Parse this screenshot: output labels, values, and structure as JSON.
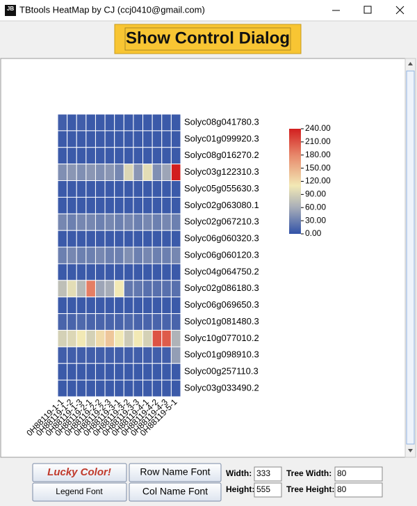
{
  "window": {
    "icon_text": "JB",
    "title": "TBtools HeatMap by CJ (ccj0410@gmail.com)"
  },
  "toolbar": {
    "button": "Show Control Dialog"
  },
  "chart_data": {
    "type": "heatmap",
    "rows": [
      "Solyc08g041780.3",
      "Solyc01g099920.3",
      "Solyc08g016270.2",
      "Solyc03g122310.3",
      "Solyc05g055630.3",
      "Solyc02g063080.1",
      "Solyc02g067210.3",
      "Solyc06g060320.3",
      "Solyc06g060120.3",
      "Solyc04g064750.2",
      "Solyc02g086180.3",
      "Solyc06g069650.3",
      "Solyc01g081480.3",
      "Solyc10g077010.2",
      "Solyc01g098910.3",
      "Solyc00g257110.3",
      "Solyc03g033490.2"
    ],
    "columns": [
      "0H88119-1-1",
      "0H88119-1-2",
      "0H88119-1-3",
      "0H88119-2-1",
      "0H88119-2-2",
      "0H88119-2-3",
      "0H88119-3-1",
      "0H88119-3-2",
      "0H88119-3-3",
      "0H88119-4-1",
      "0H88119-4-2",
      "0H88119-4-3",
      "0H88119-5-1"
    ],
    "values": [
      [
        8,
        5,
        8,
        5,
        5,
        5,
        5,
        5,
        5,
        5,
        5,
        5,
        5
      ],
      [
        5,
        5,
        5,
        5,
        5,
        5,
        5,
        5,
        5,
        5,
        5,
        5,
        5
      ],
      [
        5,
        5,
        5,
        5,
        5,
        5,
        5,
        5,
        5,
        5,
        5,
        5,
        5
      ],
      [
        40,
        45,
        40,
        45,
        40,
        45,
        35,
        95,
        45,
        100,
        40,
        55,
        240
      ],
      [
        5,
        5,
        5,
        5,
        5,
        5,
        5,
        5,
        5,
        5,
        5,
        5,
        5
      ],
      [
        5,
        5,
        5,
        5,
        5,
        5,
        5,
        5,
        5,
        5,
        5,
        5,
        5
      ],
      [
        35,
        30,
        35,
        35,
        30,
        35,
        30,
        35,
        30,
        35,
        30,
        35,
        30
      ],
      [
        5,
        5,
        5,
        5,
        5,
        5,
        5,
        5,
        5,
        5,
        5,
        5,
        5
      ],
      [
        30,
        35,
        30,
        30,
        35,
        30,
        30,
        40,
        30,
        35,
        30,
        30,
        35
      ],
      [
        5,
        5,
        5,
        5,
        5,
        5,
        5,
        5,
        5,
        5,
        5,
        5,
        5
      ],
      [
        75,
        100,
        70,
        185,
        55,
        60,
        110,
        25,
        25,
        20,
        20,
        20,
        20
      ],
      [
        5,
        5,
        5,
        5,
        5,
        5,
        5,
        5,
        5,
        5,
        5,
        5,
        5
      ],
      [
        12,
        12,
        15,
        12,
        12,
        12,
        12,
        15,
        12,
        12,
        12,
        12,
        12
      ],
      [
        90,
        95,
        110,
        90,
        120,
        135,
        110,
        85,
        110,
        90,
        210,
        205,
        65
      ],
      [
        8,
        8,
        8,
        8,
        8,
        8,
        8,
        8,
        8,
        8,
        8,
        8,
        50
      ],
      [
        5,
        5,
        5,
        5,
        5,
        5,
        5,
        5,
        5,
        5,
        5,
        5,
        5
      ],
      [
        5,
        5,
        5,
        5,
        5,
        5,
        5,
        5,
        5,
        5,
        5,
        5,
        5
      ]
    ],
    "zlim": [
      0,
      240
    ],
    "colorscale": [
      [
        0,
        "#3152a8"
      ],
      [
        60,
        "#a7adb8"
      ],
      [
        110,
        "#f2e9b5"
      ],
      [
        180,
        "#e7876a"
      ],
      [
        240,
        "#d21f1f"
      ]
    ],
    "colorbar_ticks": [
      {
        "value": 0,
        "label": "0.00"
      },
      {
        "value": 30,
        "label": "30.00"
      },
      {
        "value": 60,
        "label": "60.00"
      },
      {
        "value": 90,
        "label": "90.00"
      },
      {
        "value": 120,
        "label": "120.00"
      },
      {
        "value": 150,
        "label": "150.00"
      },
      {
        "value": 180,
        "label": "180.00"
      },
      {
        "value": 210,
        "label": "210.00"
      },
      {
        "value": 240,
        "label": "240.00"
      }
    ]
  },
  "controls": {
    "lucky_color": "Lucky Color!",
    "legend_font": "Legend Font",
    "row_name_font": "Row Name Font",
    "col_name_font": "Col Name Font",
    "width_label": "Width:",
    "width_value": "333",
    "height_label": "Height:",
    "height_value": "555",
    "tree_width_label": "Tree Width:",
    "tree_width_value": "80",
    "tree_height_label": "Tree Height:",
    "tree_height_value": "80"
  }
}
